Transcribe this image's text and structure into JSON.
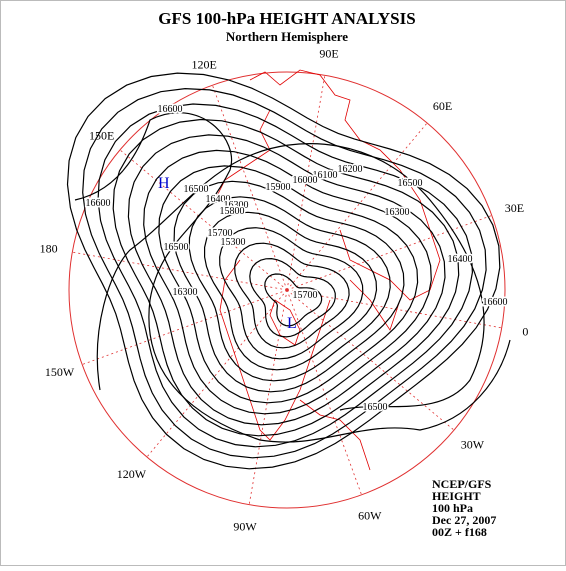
{
  "header": {
    "title": "GFS 100-hPa HEIGHT ANALYSIS",
    "subtitle": "Northern Hemisphere"
  },
  "longitude_labels": [
    "90E",
    "60E",
    "30E",
    "0",
    "30W",
    "60W",
    "90W",
    "120W",
    "150W",
    "180",
    "150E",
    "120E"
  ],
  "pressure_centers": [
    "H",
    "L"
  ],
  "contour_labels": [
    "16600",
    "16600",
    "16500",
    "16400",
    "16300",
    "16200",
    "16100",
    "16000",
    "15900",
    "15800",
    "15700",
    "15300",
    "15700",
    "16500",
    "16400",
    "16300",
    "16500",
    "16600",
    "16300",
    "16500"
  ],
  "footer": [
    "NCEP/GFS",
    "HEIGHT",
    "100 hPa",
    "Dec 27, 2007",
    "00Z + f168"
  ]
}
